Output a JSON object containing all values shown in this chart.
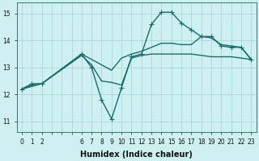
{
  "xlabel": "Humidex (Indice chaleur)",
  "bg_color": "#cff0f0",
  "grid_color": "#aad8d8",
  "line_color": "#1a6b6b",
  "spine_color": "#2a7a7a",
  "xtick_labels": [
    "0",
    "1",
    "2",
    "",
    "",
    "",
    "6",
    "7",
    "8",
    "9",
    "10",
    "11",
    "12",
    "13",
    "14",
    "15",
    "16",
    "17",
    "18",
    "19",
    "20",
    "21",
    "22",
    "23"
  ],
  "yticks": [
    11,
    12,
    13,
    14,
    15
  ],
  "ylim": [
    10.6,
    15.4
  ],
  "xlim": [
    -0.5,
    23.5
  ],
  "line1_x": [
    0,
    1,
    2,
    6,
    7,
    8,
    9,
    10,
    11,
    12,
    13,
    14,
    15,
    16,
    17,
    18,
    19,
    20,
    21,
    22,
    23
  ],
  "line1_y": [
    12.2,
    12.4,
    12.4,
    13.5,
    13.0,
    11.8,
    11.1,
    12.25,
    13.4,
    13.5,
    14.6,
    15.05,
    15.05,
    14.65,
    14.4,
    14.15,
    14.15,
    13.8,
    13.75,
    13.75,
    13.3
  ],
  "line2_x": [
    0,
    1,
    2,
    6,
    7,
    8,
    9,
    10,
    11,
    12,
    13,
    14,
    15,
    16,
    17,
    18,
    19,
    20,
    21,
    22,
    23
  ],
  "line2_y": [
    12.2,
    12.35,
    12.4,
    13.45,
    13.1,
    12.5,
    12.45,
    12.35,
    13.35,
    13.45,
    13.5,
    13.5,
    13.5,
    13.5,
    13.5,
    13.45,
    13.4,
    13.4,
    13.4,
    13.35,
    13.3
  ],
  "line3_x": [
    0,
    1,
    2,
    6,
    7,
    8,
    9,
    10,
    11,
    12,
    13,
    14,
    15,
    16,
    17,
    18,
    19,
    20,
    21,
    22,
    23
  ],
  "line3_y": [
    12.2,
    12.3,
    12.4,
    13.5,
    13.3,
    13.1,
    12.9,
    13.35,
    13.5,
    13.6,
    13.75,
    13.9,
    13.9,
    13.85,
    13.85,
    14.15,
    14.1,
    13.85,
    13.8,
    13.75,
    13.3
  ],
  "marker": "+",
  "markersize": 4,
  "linewidth": 1.0,
  "tick_labelsize": 5.5,
  "xlabel_fontsize": 7
}
